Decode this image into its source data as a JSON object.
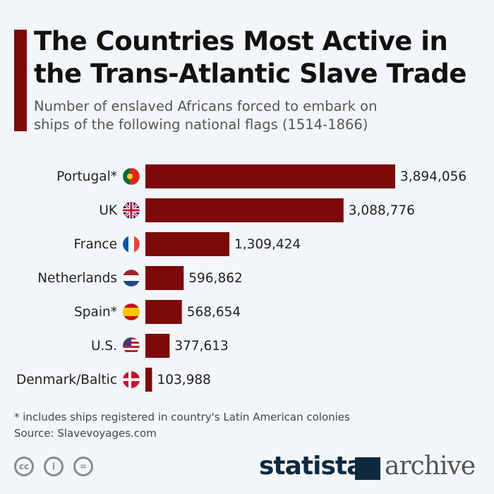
{
  "title": "The Countries Most Active in the Trans-Atlantic Slave Trade",
  "subtitle": "Number of enslaved Africans forced to embark on ships of the following national flags (1514-1866)",
  "chart_data": {
    "type": "bar",
    "orientation": "horizontal",
    "title": "The Countries Most Active in the Trans-Atlantic Slave Trade",
    "categories": [
      "Portugal*",
      "UK",
      "France",
      "Netherlands",
      "Spain*",
      "U.S.",
      "Denmark/Baltic"
    ],
    "values": [
      3894056,
      3088776,
      1309424,
      596862,
      568654,
      377613,
      103988
    ],
    "value_labels": [
      "3,894,056",
      "3,088,776",
      "1,309,424",
      "596,862",
      "568,654",
      "377,613",
      "103,988"
    ],
    "flag_icons": [
      "portugal-flag-icon",
      "uk-flag-icon",
      "france-flag-icon",
      "netherlands-flag-icon",
      "spain-flag-icon",
      "us-flag-icon",
      "denmark-flag-icon"
    ],
    "bar_color": "#7d0a0a",
    "grid": false
  },
  "footnote": "* includes ships registered in country's Latin American colonies",
  "source": "Source: Slavevoyages.com",
  "license_icons": [
    "cc-icon",
    "attribution-icon",
    "no-derivatives-icon"
  ],
  "logo": {
    "brand": "statista",
    "suffix": "archive"
  }
}
